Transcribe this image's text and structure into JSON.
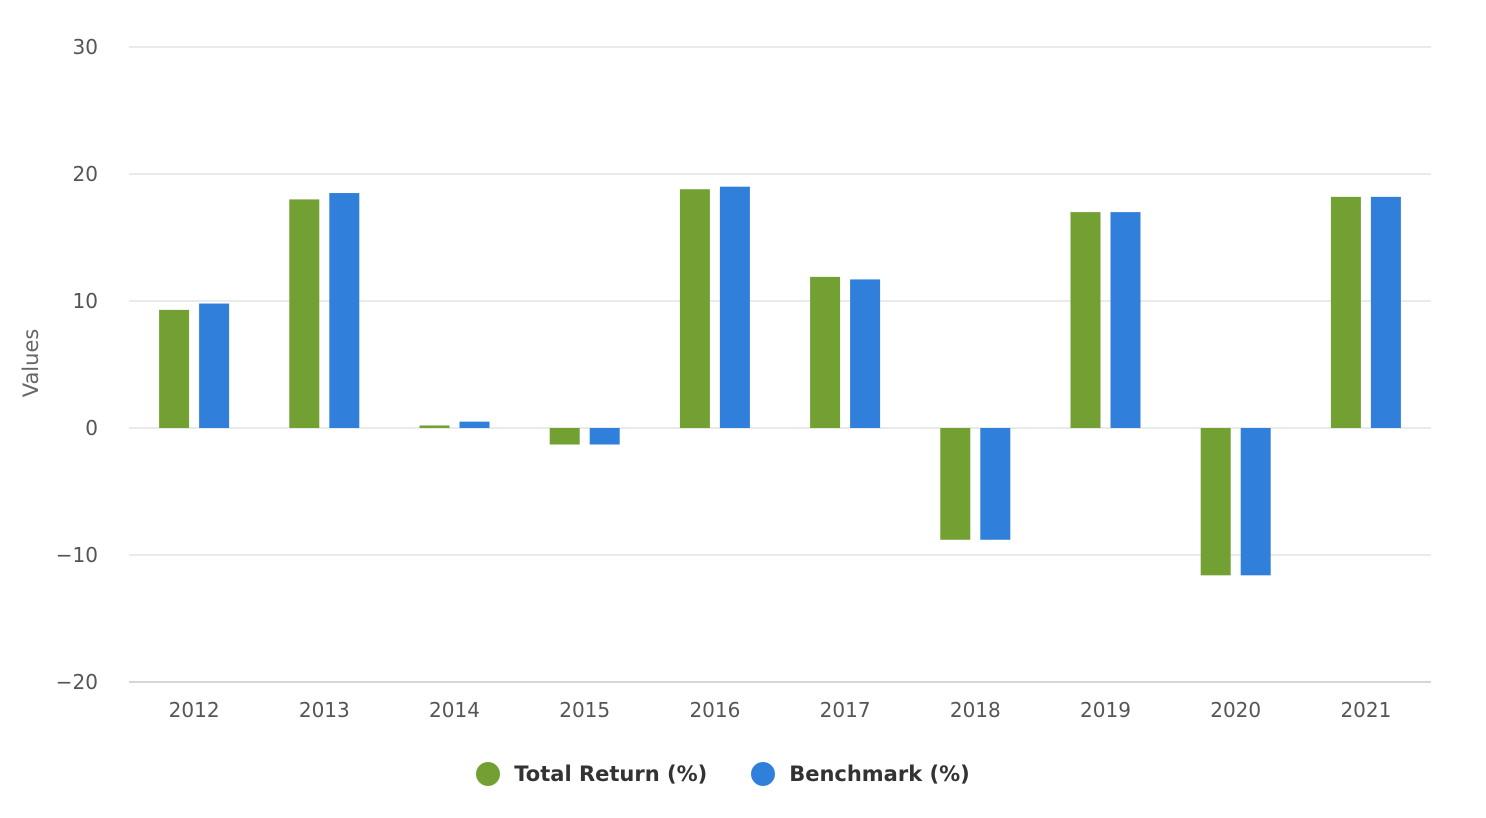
{
  "chart_data": {
    "type": "bar",
    "categories": [
      "2012",
      "2013",
      "2014",
      "2015",
      "2016",
      "2017",
      "2018",
      "2019",
      "2020",
      "2021"
    ],
    "series": [
      {
        "name": "Total Return (%)",
        "color": "#72a033",
        "values": [
          9.3,
          18.0,
          0.2,
          -1.3,
          18.8,
          11.9,
          -8.8,
          17.0,
          -11.6,
          18.2
        ]
      },
      {
        "name": "Benchmark (%)",
        "color": "#307fdb",
        "values": [
          9.8,
          18.5,
          0.5,
          -1.3,
          19.0,
          11.7,
          -8.8,
          17.0,
          -11.6,
          18.2
        ]
      }
    ],
    "ylabel": "Values",
    "ylim": [
      -20,
      30
    ],
    "yticks": [
      30,
      20,
      10,
      0,
      -10,
      -20
    ],
    "ytick_labels": [
      "30",
      "20",
      "10",
      "0",
      "−10",
      "−20"
    ],
    "grid": true,
    "legend_position": "bottom-center"
  }
}
